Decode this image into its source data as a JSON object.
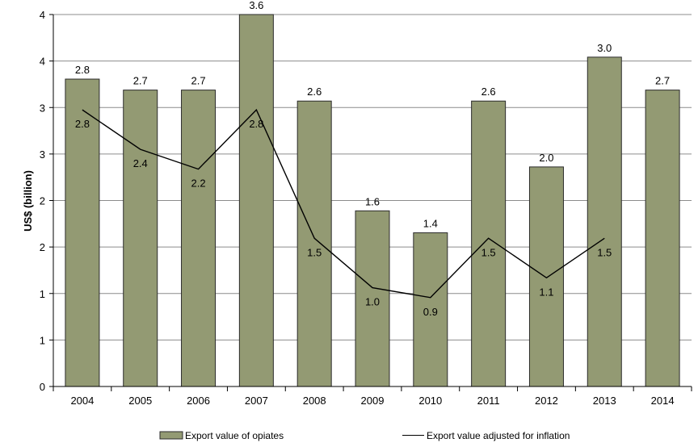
{
  "chart_data": {
    "type": "bar",
    "categories": [
      "2004",
      "2005",
      "2006",
      "2007",
      "2008",
      "2009",
      "2010",
      "2011",
      "2012",
      "2013",
      "2014"
    ],
    "series": [
      {
        "name": "Export value of opiates",
        "type": "bar",
        "display_values": [
          2.8,
          2.7,
          2.7,
          3.6,
          2.6,
          1.6,
          1.4,
          2.6,
          2.0,
          3.0,
          2.7
        ],
        "labels": [
          "2.8",
          "2.7",
          "2.7",
          "3.6",
          "2.6",
          "1.6",
          "1.4",
          "2.6",
          "2.0",
          "3.0",
          "2.7"
        ]
      },
      {
        "name": "Export value adjusted for inflation",
        "type": "line",
        "display_values": [
          2.8,
          2.4,
          2.2,
          2.8,
          1.5,
          1.0,
          0.9,
          1.5,
          1.1,
          1.5,
          null
        ],
        "labels": [
          "2.8",
          "2.4",
          "2.2",
          "2.8",
          "1.5",
          "1.0",
          "0.9",
          "1.5",
          "1.1",
          "1.5",
          null
        ]
      }
    ],
    "ylabel": "US$ (billion)",
    "xlabel": "",
    "ytick_labels": [
      "0",
      "1",
      "1",
      "2",
      "2",
      "3",
      "3",
      "4",
      "4"
    ],
    "ylim": [
      0,
      4
    ],
    "grid": true,
    "legend_position": "bottom",
    "colors": {
      "bar_fill": "#939a73",
      "bar_stroke": "#2b2b2b",
      "line": "#000000",
      "grid": "#8c8c8c"
    }
  }
}
